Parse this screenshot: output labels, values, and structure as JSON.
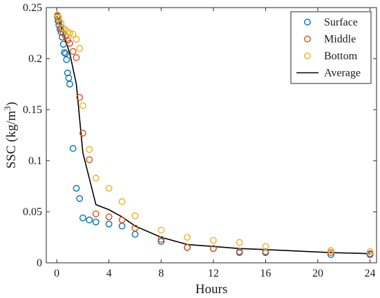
{
  "chart_data": {
    "type": "scatter",
    "title": "",
    "xlabel": "Hours",
    "ylabel": "SSC (kg/m",
    "ylabel_superscript": "3",
    "ylabel_suffix": ")",
    "xlim": [
      -0.8,
      24.5
    ],
    "ylim": [
      0,
      0.25
    ],
    "xticks": [
      0,
      4,
      8,
      12,
      16,
      20,
      24
    ],
    "yticks": [
      0,
      0.05,
      0.1,
      0.15,
      0.2,
      0.25
    ],
    "ytick_labels": [
      "0",
      "0.05",
      "0.1",
      "0.15",
      "0.2",
      "0.25"
    ],
    "grid": false,
    "legend_position": "top-right",
    "series": [
      {
        "name": "Surface",
        "marker": "circle-open",
        "color": "#0072BD",
        "points": [
          [
            0.05,
            0.241
          ],
          [
            0.1,
            0.237
          ],
          [
            0.17,
            0.233
          ],
          [
            0.25,
            0.229
          ],
          [
            0.33,
            0.226
          ],
          [
            0.42,
            0.221
          ],
          [
            0.5,
            0.214
          ],
          [
            0.58,
            0.206
          ],
          [
            0.67,
            0.205
          ],
          [
            0.75,
            0.199
          ],
          [
            0.83,
            0.186
          ],
          [
            0.92,
            0.181
          ],
          [
            1.0,
            0.175
          ],
          [
            1.25,
            0.112
          ],
          [
            1.5,
            0.073
          ],
          [
            1.75,
            0.063
          ],
          [
            2.0,
            0.044
          ],
          [
            2.5,
            0.042
          ],
          [
            3.0,
            0.04
          ],
          [
            4.0,
            0.038
          ],
          [
            5.0,
            0.036
          ],
          [
            6.0,
            0.028
          ],
          [
            8.0,
            0.021
          ],
          [
            10.0,
            0.015
          ],
          [
            12.0,
            0.014
          ],
          [
            14.0,
            0.01
          ],
          [
            16.0,
            0.01
          ],
          [
            21.0,
            0.008
          ],
          [
            24.0,
            0.008
          ]
        ]
      },
      {
        "name": "Middle",
        "marker": "circle-open",
        "color": "#D95319",
        "points": [
          [
            0.05,
            0.242
          ],
          [
            0.17,
            0.236
          ],
          [
            0.33,
            0.23
          ],
          [
            0.5,
            0.225
          ],
          [
            0.67,
            0.222
          ],
          [
            0.83,
            0.218
          ],
          [
            1.0,
            0.215
          ],
          [
            1.25,
            0.207
          ],
          [
            1.5,
            0.201
          ],
          [
            1.75,
            0.162
          ],
          [
            2.0,
            0.127
          ],
          [
            2.5,
            0.101
          ],
          [
            3.0,
            0.048
          ],
          [
            4.0,
            0.045
          ],
          [
            5.0,
            0.042
          ],
          [
            6.0,
            0.034
          ],
          [
            8.0,
            0.023
          ],
          [
            10.0,
            0.015
          ],
          [
            12.0,
            0.014
          ],
          [
            14.0,
            0.011
          ],
          [
            16.0,
            0.011
          ],
          [
            21.0,
            0.01
          ],
          [
            24.0,
            0.009
          ]
        ]
      },
      {
        "name": "Bottom",
        "marker": "circle-open",
        "color": "#EDB120",
        "points": [
          [
            0.05,
            0.243
          ],
          [
            0.17,
            0.24
          ],
          [
            0.33,
            0.235
          ],
          [
            0.5,
            0.23
          ],
          [
            0.67,
            0.228
          ],
          [
            0.83,
            0.226
          ],
          [
            1.0,
            0.225
          ],
          [
            1.25,
            0.224
          ],
          [
            1.5,
            0.219
          ],
          [
            1.75,
            0.21
          ],
          [
            2.0,
            0.154
          ],
          [
            2.5,
            0.111
          ],
          [
            3.0,
            0.083
          ],
          [
            4.0,
            0.073
          ],
          [
            5.0,
            0.06
          ],
          [
            6.0,
            0.046
          ],
          [
            8.0,
            0.032
          ],
          [
            10.0,
            0.025
          ],
          [
            12.0,
            0.022
          ],
          [
            14.0,
            0.02
          ],
          [
            16.0,
            0.016
          ],
          [
            21.0,
            0.012
          ],
          [
            24.0,
            0.011
          ]
        ]
      },
      {
        "name": "Average",
        "marker": "line",
        "color": "#000000",
        "points": [
          [
            0.0,
            0.242
          ],
          [
            0.5,
            0.225
          ],
          [
            1.0,
            0.205
          ],
          [
            1.5,
            0.175
          ],
          [
            2.0,
            0.108
          ],
          [
            3.0,
            0.057
          ],
          [
            4.0,
            0.052
          ],
          [
            5.0,
            0.045
          ],
          [
            6.0,
            0.036
          ],
          [
            8.0,
            0.025
          ],
          [
            10.0,
            0.018
          ],
          [
            12.0,
            0.016
          ],
          [
            14.0,
            0.014
          ],
          [
            16.0,
            0.013
          ],
          [
            21.0,
            0.01
          ],
          [
            24.0,
            0.009
          ]
        ]
      }
    ]
  }
}
